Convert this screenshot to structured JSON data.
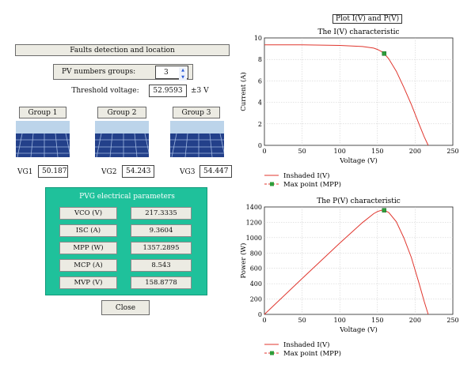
{
  "app": {
    "title": "Faults detection and location",
    "pv_groups_label": "PV numbers groups:",
    "pv_groups_value": "3",
    "threshold_label": "Threshold voltage:",
    "threshold_value": "52.9593",
    "threshold_tolerance": "±3 V"
  },
  "groups": [
    {
      "title": "Group 1",
      "vg_label": "VG1",
      "vg_value": "50.187"
    },
    {
      "title": "Group 2",
      "vg_label": "VG2",
      "vg_value": "54.243"
    },
    {
      "title": "Group 3",
      "vg_label": "VG3",
      "vg_value": "54.447"
    }
  ],
  "params": {
    "title": "PVG electrical parameters",
    "rows": [
      {
        "label": "VCO (V)",
        "value": "217.3335"
      },
      {
        "label": "ISC (A)",
        "value": "9.3604"
      },
      {
        "label": "MPP (W)",
        "value": "1357.2895"
      },
      {
        "label": "MCP (A)",
        "value": "8.543"
      },
      {
        "label": "MVP (V)",
        "value": "158.8778"
      }
    ]
  },
  "close_label": "Close",
  "plot_header": "Plot I(V) and P(V)",
  "colors": {
    "curve": "#e0362e",
    "mpp": "#2e9e3a",
    "teal": "#1fc19b"
  },
  "chart_data": [
    {
      "type": "line",
      "title": "The I(V) characteristic",
      "xlabel": "Voltage (V)",
      "ylabel": "Current (A)",
      "xlim": [
        0,
        250
      ],
      "ylim": [
        0,
        10
      ],
      "xticks": [
        "0",
        "50",
        "100",
        "150",
        "200",
        "250"
      ],
      "yticks": [
        "0",
        "2",
        "4",
        "6",
        "8",
        "10"
      ],
      "grid": true,
      "legend": [
        "Inshaded I(V)",
        "Max point (MPP)"
      ],
      "legend_position": "below",
      "series": [
        {
          "name": "Inshaded I(V)",
          "x": [
            0,
            50,
            100,
            130,
            145,
            150,
            155,
            158.9,
            165,
            175,
            185,
            195,
            205,
            212,
            217.3
          ],
          "y": [
            9.36,
            9.35,
            9.3,
            9.2,
            9.05,
            8.93,
            8.75,
            8.543,
            8.05,
            6.9,
            5.4,
            3.8,
            2.0,
            0.8,
            0
          ]
        }
      ],
      "mpp": {
        "x": 158.9,
        "y": 8.543
      }
    },
    {
      "type": "line",
      "title": "The P(V) characteristic",
      "xlabel": "Voltage (V)",
      "ylabel": "Power (W)",
      "xlim": [
        0,
        250
      ],
      "ylim": [
        0,
        1400
      ],
      "xticks": [
        "0",
        "50",
        "100",
        "150",
        "200",
        "250"
      ],
      "yticks": [
        "0",
        "200",
        "400",
        "600",
        "800",
        "1000",
        "1200",
        "1400"
      ],
      "grid": true,
      "legend": [
        "Inshaded I(V)",
        "Max point (MPP)"
      ],
      "legend_position": "below",
      "series": [
        {
          "name": "Inshaded I(V)",
          "x": [
            0,
            50,
            100,
            130,
            145,
            150,
            155,
            158.9,
            165,
            175,
            185,
            195,
            205,
            212,
            217.3
          ],
          "y": [
            0,
            467.5,
            930,
            1196,
            1312,
            1340,
            1356,
            1357.3,
            1328,
            1208,
            999,
            741,
            410,
            170,
            0
          ]
        }
      ],
      "mpp": {
        "x": 158.9,
        "y": 1357.3
      }
    }
  ]
}
